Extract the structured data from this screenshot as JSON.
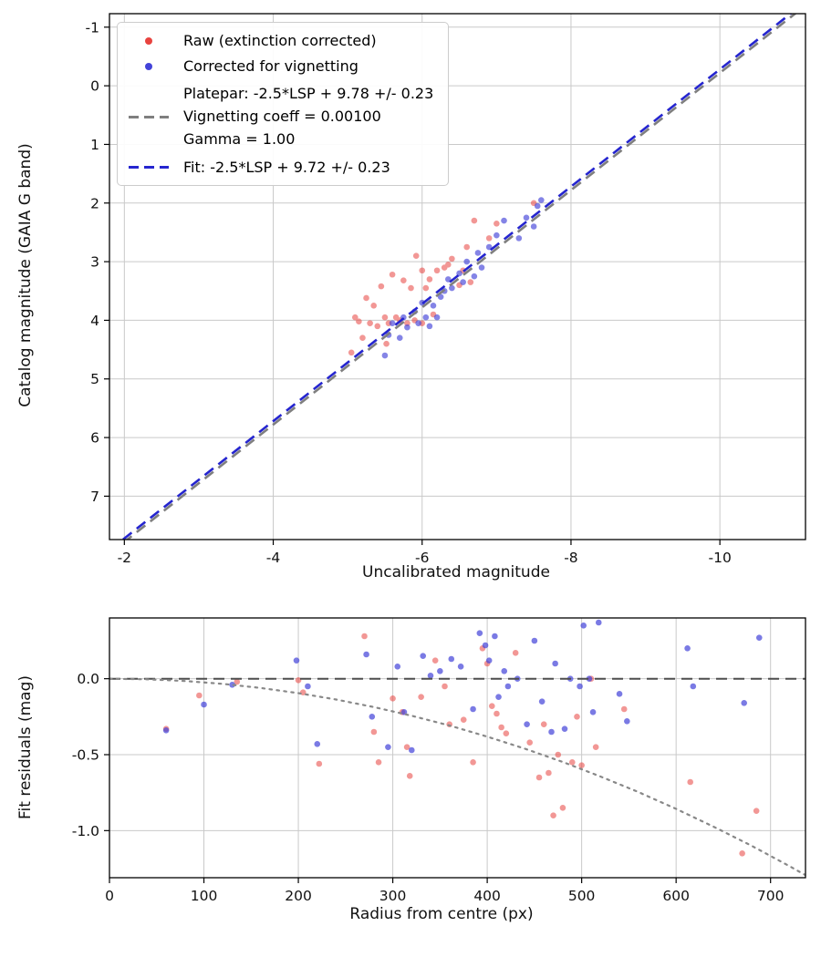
{
  "figure": {
    "background": "#ffffff"
  },
  "chart_data": [
    {
      "id": "photometry-fit-plot",
      "type": "scatter",
      "title": "",
      "xlabel": "Uncalibrated magnitude",
      "ylabel": "Catalog magnitude (GAIA G band)",
      "xlim": [
        -1.8,
        -11.15
      ],
      "ylim": [
        -1.23,
        7.74
      ],
      "y_inverted": true,
      "grid": true,
      "xticks": {
        "values": [
          -2,
          -4,
          -6,
          -8,
          -10
        ],
        "labels": [
          "-2",
          "-4",
          "-6",
          "-8",
          "-10"
        ]
      },
      "yticks": {
        "values": [
          -1,
          0,
          1,
          2,
          3,
          4,
          5,
          6,
          7
        ],
        "labels": [
          "-1",
          "0",
          "1",
          "2",
          "3",
          "4",
          "5",
          "6",
          "7"
        ]
      },
      "legend": {
        "position": "upper-left",
        "entries": [
          {
            "marker": "dot",
            "color": "#e8433f",
            "label": "Raw (extinction corrected)"
          },
          {
            "marker": "dot",
            "color": "#4343d9",
            "label": "Corrected for vignetting"
          },
          {
            "marker": "dash",
            "color": "#7f7f7f",
            "lines": [
              "Platepar: -2.5*LSP + 9.78 +/- 0.23",
              "Vignetting coeff = 0.00100",
              "Gamma = 1.00"
            ]
          },
          {
            "marker": "dash",
            "color": "#2525cf",
            "label": "Fit: -2.5*LSP + 9.72 +/- 0.23"
          }
        ]
      },
      "series": [
        {
          "name": "Raw (extinction corrected)",
          "type": "scatter",
          "color": "#e8433f",
          "opacity": 0.55,
          "points": [
            [
              -5.05,
              4.55
            ],
            [
              -5.1,
              3.95
            ],
            [
              -5.15,
              4.02
            ],
            [
              -5.2,
              4.3
            ],
            [
              -5.25,
              3.62
            ],
            [
              -5.3,
              4.05
            ],
            [
              -5.35,
              3.75
            ],
            [
              -5.4,
              4.1
            ],
            [
              -5.45,
              3.42
            ],
            [
              -5.5,
              3.95
            ],
            [
              -5.52,
              4.4
            ],
            [
              -5.55,
              4.05
            ],
            [
              -5.6,
              3.22
            ],
            [
              -5.65,
              3.95
            ],
            [
              -5.7,
              4.0
            ],
            [
              -5.75,
              3.32
            ],
            [
              -5.8,
              4.05
            ],
            [
              -5.85,
              3.45
            ],
            [
              -5.9,
              4.0
            ],
            [
              -5.92,
              2.9
            ],
            [
              -6.0,
              3.15
            ],
            [
              -6.0,
              4.05
            ],
            [
              -6.05,
              3.45
            ],
            [
              -6.1,
              3.3
            ],
            [
              -6.15,
              3.9
            ],
            [
              -6.2,
              3.15
            ],
            [
              -6.3,
              3.1
            ],
            [
              -6.35,
              3.05
            ],
            [
              -6.4,
              2.95
            ],
            [
              -6.5,
              3.4
            ],
            [
              -6.55,
              3.15
            ],
            [
              -6.6,
              2.75
            ],
            [
              -6.65,
              3.35
            ],
            [
              -6.7,
              2.3
            ],
            [
              -6.9,
              2.6
            ],
            [
              -7.0,
              2.35
            ],
            [
              -7.5,
              2.0
            ]
          ]
        },
        {
          "name": "Corrected for vignetting",
          "type": "scatter",
          "color": "#4343d9",
          "opacity": 0.65,
          "points": [
            [
              -5.5,
              4.6
            ],
            [
              -5.55,
              4.25
            ],
            [
              -5.6,
              4.05
            ],
            [
              -5.7,
              4.3
            ],
            [
              -5.75,
              3.95
            ],
            [
              -5.8,
              4.12
            ],
            [
              -5.9,
              3.85
            ],
            [
              -5.95,
              4.05
            ],
            [
              -6.0,
              3.7
            ],
            [
              -6.05,
              3.95
            ],
            [
              -6.1,
              4.1
            ],
            [
              -6.15,
              3.75
            ],
            [
              -6.2,
              3.95
            ],
            [
              -6.25,
              3.6
            ],
            [
              -6.3,
              3.5
            ],
            [
              -6.35,
              3.3
            ],
            [
              -6.4,
              3.45
            ],
            [
              -6.5,
              3.2
            ],
            [
              -6.55,
              3.35
            ],
            [
              -6.6,
              3.0
            ],
            [
              -6.7,
              3.25
            ],
            [
              -6.75,
              2.85
            ],
            [
              -6.8,
              3.1
            ],
            [
              -6.9,
              2.75
            ],
            [
              -7.0,
              2.55
            ],
            [
              -7.1,
              2.3
            ],
            [
              -7.3,
              2.6
            ],
            [
              -7.4,
              2.25
            ],
            [
              -7.5,
              2.4
            ],
            [
              -7.55,
              2.05
            ],
            [
              -7.6,
              1.95
            ]
          ]
        },
        {
          "name": "Platepar line",
          "type": "line",
          "style": "dashed",
          "color": "#7f7f7f",
          "width": 2.6,
          "equation": "y = x + 9.78",
          "points": [
            [
              -1.8,
              7.98
            ],
            [
              -11.15,
              -1.37
            ]
          ]
        },
        {
          "name": "Fit line",
          "type": "line",
          "style": "dashed",
          "color": "#2525cf",
          "width": 2.6,
          "equation": "y = x + 9.72",
          "points": [
            [
              -1.8,
              7.92
            ],
            [
              -11.15,
              -1.43
            ]
          ]
        }
      ]
    },
    {
      "id": "fit-residuals-plot",
      "type": "scatter",
      "title": "",
      "xlabel": "Radius from centre (px)",
      "ylabel": "Fit residuals (mag)",
      "xlim": [
        0,
        737
      ],
      "ylim": [
        0.4,
        -1.31
      ],
      "grid": true,
      "xticks": {
        "values": [
          0,
          100,
          200,
          300,
          400,
          500,
          600,
          700
        ],
        "labels": [
          "0",
          "100",
          "200",
          "300",
          "400",
          "500",
          "600",
          "700"
        ]
      },
      "yticks": {
        "values": [
          0.0,
          -0.5,
          -1.0
        ],
        "labels": [
          "0.0",
          "-0.5",
          "-1.0"
        ]
      },
      "series": [
        {
          "name": "Raw residuals",
          "type": "scatter",
          "color": "#e8433f",
          "opacity": 0.55,
          "points": [
            [
              60,
              -0.33
            ],
            [
              95,
              -0.11
            ],
            [
              135,
              -0.02
            ],
            [
              200,
              -0.01
            ],
            [
              205,
              -0.09
            ],
            [
              222,
              -0.56
            ],
            [
              270,
              0.28
            ],
            [
              280,
              -0.35
            ],
            [
              285,
              -0.55
            ],
            [
              300,
              -0.13
            ],
            [
              310,
              -0.22
            ],
            [
              315,
              -0.45
            ],
            [
              318,
              -0.64
            ],
            [
              330,
              -0.12
            ],
            [
              345,
              0.12
            ],
            [
              355,
              -0.05
            ],
            [
              360,
              -0.3
            ],
            [
              375,
              -0.27
            ],
            [
              385,
              -0.55
            ],
            [
              395,
              0.2
            ],
            [
              400,
              0.1
            ],
            [
              405,
              -0.18
            ],
            [
              410,
              -0.23
            ],
            [
              415,
              -0.32
            ],
            [
              420,
              -0.36
            ],
            [
              430,
              0.17
            ],
            [
              445,
              -0.42
            ],
            [
              455,
              -0.65
            ],
            [
              460,
              -0.3
            ],
            [
              465,
              -0.62
            ],
            [
              470,
              -0.9
            ],
            [
              475,
              -0.5
            ],
            [
              480,
              -0.85
            ],
            [
              490,
              -0.55
            ],
            [
              495,
              -0.25
            ],
            [
              500,
              -0.57
            ],
            [
              510,
              0.0
            ],
            [
              515,
              -0.45
            ],
            [
              545,
              -0.2
            ],
            [
              615,
              -0.68
            ],
            [
              670,
              -1.15
            ],
            [
              685,
              -0.87
            ]
          ]
        },
        {
          "name": "Corrected residuals",
          "type": "scatter",
          "color": "#4343d9",
          "opacity": 0.7,
          "points": [
            [
              60,
              -0.34
            ],
            [
              100,
              -0.17
            ],
            [
              130,
              -0.04
            ],
            [
              198,
              0.12
            ],
            [
              210,
              -0.05
            ],
            [
              220,
              -0.43
            ],
            [
              272,
              0.16
            ],
            [
              278,
              -0.25
            ],
            [
              295,
              -0.45
            ],
            [
              305,
              0.08
            ],
            [
              312,
              -0.22
            ],
            [
              320,
              -0.47
            ],
            [
              332,
              0.15
            ],
            [
              340,
              0.02
            ],
            [
              350,
              0.05
            ],
            [
              362,
              0.13
            ],
            [
              372,
              0.08
            ],
            [
              385,
              -0.2
            ],
            [
              392,
              0.3
            ],
            [
              398,
              0.22
            ],
            [
              402,
              0.12
            ],
            [
              408,
              0.28
            ],
            [
              412,
              -0.12
            ],
            [
              418,
              0.05
            ],
            [
              422,
              -0.05
            ],
            [
              432,
              0.0
            ],
            [
              442,
              -0.3
            ],
            [
              450,
              0.25
            ],
            [
              458,
              -0.15
            ],
            [
              468,
              -0.35
            ],
            [
              472,
              0.1
            ],
            [
              482,
              -0.33
            ],
            [
              488,
              0.0
            ],
            [
              498,
              -0.05
            ],
            [
              502,
              0.35
            ],
            [
              508,
              0.0
            ],
            [
              512,
              -0.22
            ],
            [
              518,
              0.37
            ],
            [
              540,
              -0.1
            ],
            [
              548,
              -0.28
            ],
            [
              612,
              0.2
            ],
            [
              618,
              -0.05
            ],
            [
              672,
              -0.16
            ],
            [
              688,
              0.27
            ]
          ]
        },
        {
          "name": "Zero line",
          "type": "line",
          "style": "dashed",
          "color": "#4d4d4d",
          "width": 2,
          "points": [
            [
              0,
              0
            ],
            [
              737,
              0
            ]
          ]
        },
        {
          "name": "Vignetting model",
          "type": "line",
          "style": "dotted",
          "color": "#888888",
          "width": 2.2,
          "points": [
            [
              0,
              0
            ],
            [
              40,
              -0.004
            ],
            [
              80,
              -0.015
            ],
            [
              120,
              -0.034
            ],
            [
              160,
              -0.061
            ],
            [
              200,
              -0.095
            ],
            [
              240,
              -0.137
            ],
            [
              280,
              -0.187
            ],
            [
              320,
              -0.244
            ],
            [
              360,
              -0.308
            ],
            [
              400,
              -0.381
            ],
            [
              440,
              -0.461
            ],
            [
              480,
              -0.548
            ],
            [
              520,
              -0.644
            ],
            [
              560,
              -0.746
            ],
            [
              600,
              -0.857
            ],
            [
              640,
              -0.975
            ],
            [
              680,
              -1.1
            ],
            [
              720,
              -1.234
            ],
            [
              737,
              -1.293
            ]
          ]
        }
      ]
    }
  ]
}
